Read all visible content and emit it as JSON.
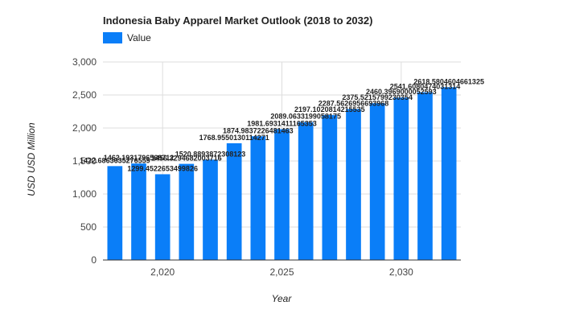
{
  "chart_data": {
    "type": "bar",
    "title": "Indonesia Baby Apparel Market Outlook (2018 to 2032)",
    "xlabel": "Year",
    "ylabel": "USD USD Million",
    "legend": {
      "placement": "top-left",
      "entries": [
        "Value"
      ]
    },
    "colors": {
      "bar": "#0a7ef8",
      "grid": "#dddddd",
      "axis": "#333333"
    },
    "grid": true,
    "xlim": [
      2017.5,
      2032.5
    ],
    "ylim": [
      0,
      3000
    ],
    "yticks": [
      0,
      500,
      1000,
      1500,
      2000,
      2500,
      3000
    ],
    "ytick_labels": [
      "0",
      "500",
      "1,000",
      "1,500",
      "2,000",
      "2,500",
      "3,000"
    ],
    "xticks": [
      2020,
      2025,
      2030
    ],
    "xtick_labels": [
      "2,020",
      "2,025",
      "2,030"
    ],
    "x": [
      2018,
      2019,
      2020,
      2021,
      2022,
      2023,
      2024,
      2025,
      2026,
      2027,
      2028,
      2029,
      2030,
      2031,
      2032
    ],
    "series": [
      {
        "name": "Value",
        "values": [
          1422.6863635276559,
          1462.1931796568713,
          1299.4522653499826,
          1456.3294682003716,
          1520.8893872308122,
          1768.9550130114271,
          1874.9837226481463,
          1981.6931411165353,
          2089.0633199058175,
          2197.1020814215535,
          2287.562695669397,
          2375.5215799230355,
          2460.3969000052593,
          2541.6080474031314,
          2618.5804604661325
        ],
        "labels": [
          "1422.6863635276559",
          "1462.1931796568712",
          "1299.4522653499826",
          "1456.3294682003716",
          "1520.8893872308123",
          "1768.9550130114271",
          "1874.9837226481463",
          "1981.6931411165353",
          "2089.0633199058175",
          "2197.1020814215535",
          "2287.5626956693968",
          "2375.5215799230354",
          "2460.3969000052593",
          "2541.6080474031314",
          "2618.5804604661325"
        ]
      }
    ]
  }
}
